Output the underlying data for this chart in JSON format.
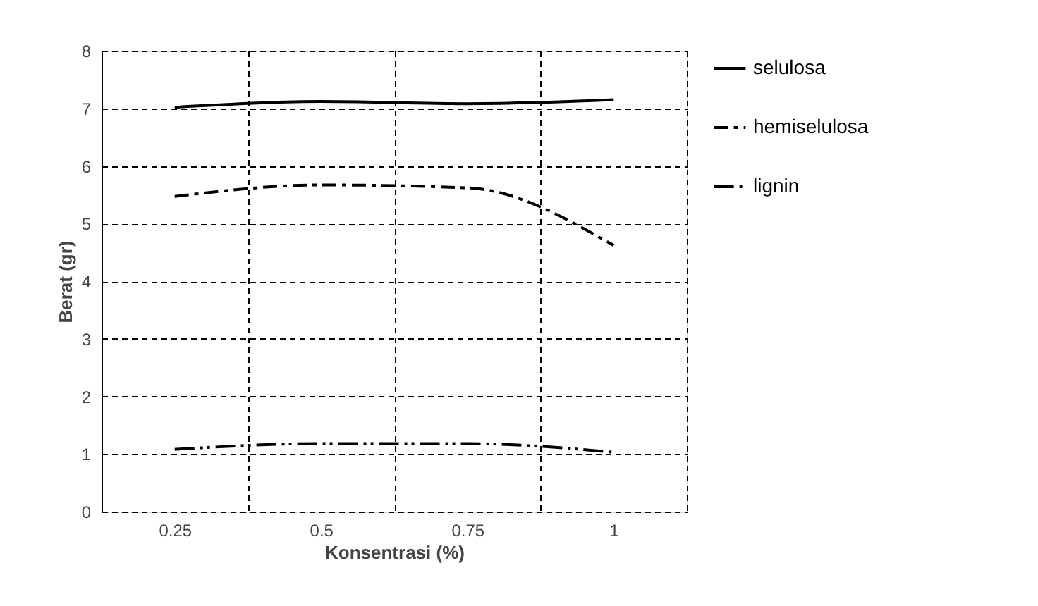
{
  "chart_data": {
    "type": "line",
    "xlabel": "Konsentrasi (%)",
    "ylabel": "Berat (gr)",
    "categories": [
      "0.25",
      "0.5",
      "0.75",
      "1"
    ],
    "series": [
      {
        "name": "selulosa",
        "color": "#000000",
        "line_style": "solid",
        "values": [
          7.02,
          7.12,
          7.08,
          7.15
        ]
      },
      {
        "name": "hemiselulosa",
        "color": "#000000",
        "line_style": "dashed",
        "values": [
          5.47,
          5.67,
          5.62,
          4.62
        ]
      },
      {
        "name": "lignin",
        "color": "#000000",
        "line_style": "dotted",
        "values": [
          1.08,
          1.18,
          1.18,
          1.03
        ]
      }
    ],
    "ylim": [
      0,
      8
    ],
    "yticks": [
      0,
      1,
      2,
      3,
      4,
      5,
      6,
      7,
      8
    ],
    "grid": true,
    "legend": "right",
    "marker": "none"
  }
}
